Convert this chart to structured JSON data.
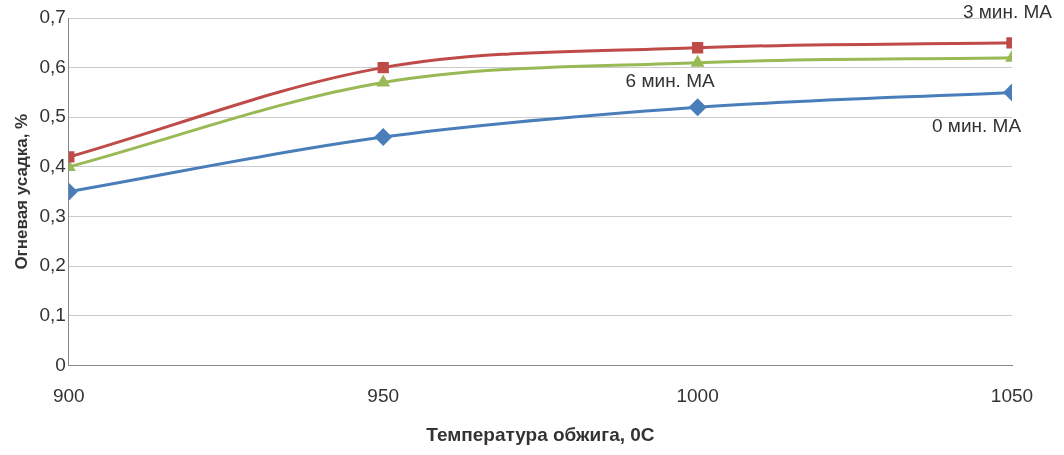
{
  "chart_data": {
    "type": "line",
    "xlabel": "Температура обжига, 0С",
    "ylabel": "Огневая усадка, %",
    "x": [
      900,
      950,
      1000,
      1050
    ],
    "series": [
      {
        "name": "0 мин. МА",
        "color": "#4a7ebb",
        "marker": "diamond",
        "values": [
          0.35,
          0.46,
          0.52,
          0.55
        ]
      },
      {
        "name": "3 мин. МА",
        "color": "#be4b48",
        "marker": "square",
        "values": [
          0.42,
          0.6,
          0.64,
          0.65
        ]
      },
      {
        "name": "6 мин. МА",
        "color": "#98b954",
        "marker": "triangle",
        "values": [
          0.4,
          0.57,
          0.61,
          0.62
        ]
      }
    ],
    "xlim": [
      900,
      1050
    ],
    "xticks": [
      900,
      950,
      1000,
      1050
    ],
    "ylim": [
      0,
      0.7
    ],
    "yticks": [
      {
        "value": 0,
        "label": "0"
      },
      {
        "value": 0.1,
        "label": "0,1"
      },
      {
        "value": 0.2,
        "label": "0,2"
      },
      {
        "value": 0.3,
        "label": "0,3"
      },
      {
        "value": 0.4,
        "label": "0,4"
      },
      {
        "value": 0.5,
        "label": "0,5"
      },
      {
        "value": 0.6,
        "label": "0,6"
      },
      {
        "value": 0.7,
        "label": "0,7"
      }
    ],
    "grid": "y",
    "legend": false
  }
}
